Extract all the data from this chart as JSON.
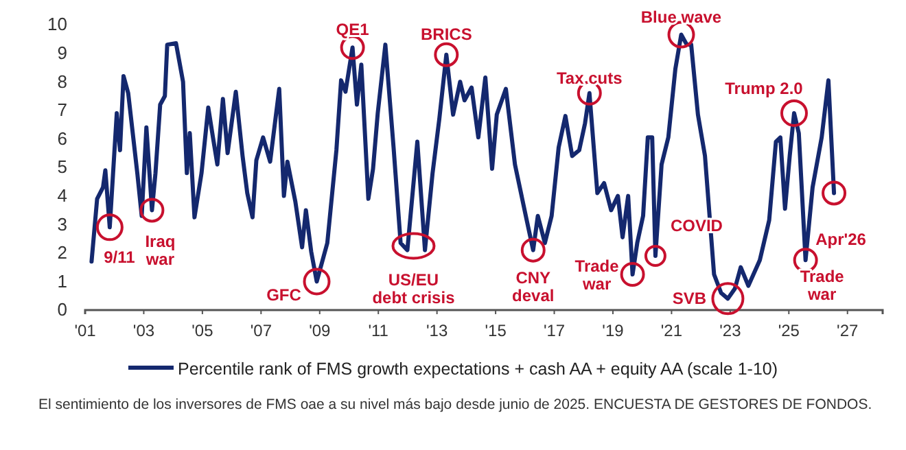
{
  "chart_data": {
    "type": "line",
    "x": [
      2001.22,
      2001.41,
      2001.61,
      2001.69,
      2001.84,
      2002.08,
      2002.19,
      2002.31,
      2002.47,
      2002.78,
      2002.93,
      2003.09,
      2003.28,
      2003.4,
      2003.56,
      2003.72,
      2003.8,
      2004.1,
      2004.34,
      2004.47,
      2004.57,
      2004.73,
      2004.97,
      2005.2,
      2005.36,
      2005.51,
      2005.7,
      2005.86,
      2006.14,
      2006.37,
      2006.53,
      2006.71,
      2006.84,
      2007.07,
      2007.31,
      2007.62,
      2007.78,
      2007.9,
      2008.17,
      2008.4,
      2008.53,
      2008.71,
      2008.9,
      2009.1,
      2009.26,
      2009.57,
      2009.73,
      2009.88,
      2010.12,
      2010.27,
      2010.42,
      2010.66,
      2010.82,
      2010.98,
      2011.24,
      2011.52,
      2011.76,
      2011.99,
      2012.33,
      2012.59,
      2012.85,
      2013.08,
      2013.32,
      2013.55,
      2013.79,
      2013.94,
      2014.18,
      2014.41,
      2014.65,
      2014.88,
      2015.04,
      2015.35,
      2015.66,
      2016.05,
      2016.28,
      2016.44,
      2016.68,
      2016.91,
      2017.15,
      2017.38,
      2017.61,
      2017.85,
      2018.05,
      2018.2,
      2018.47,
      2018.7,
      2018.94,
      2019.17,
      2019.33,
      2019.52,
      2019.67,
      2019.83,
      2020.03,
      2020.19,
      2020.34,
      2020.45,
      2020.66,
      2020.89,
      2021.13,
      2021.33,
      2021.52,
      2021.67,
      2021.9,
      2022.14,
      2022.45,
      2022.69,
      2022.92,
      2023.16,
      2023.36,
      2023.62,
      2024.01,
      2024.33,
      2024.56,
      2024.71,
      2024.87,
      2025.03,
      2025.18,
      2025.34,
      2025.57,
      2025.81,
      2026.12,
      2026.35,
      2026.54
    ],
    "series": [
      {
        "name": "Percentile rank of FMS growth expectations + cash AA + equity AA (scale 1-10)",
        "color": "#14286e",
        "values": [
          1.7,
          3.9,
          4.3,
          4.9,
          2.9,
          6.9,
          5.6,
          8.2,
          7.6,
          4.8,
          3.3,
          6.4,
          3.5,
          4.8,
          7.2,
          7.5,
          9.3,
          9.35,
          8.0,
          4.8,
          6.2,
          3.25,
          4.8,
          7.1,
          6.05,
          5.1,
          7.4,
          5.5,
          7.65,
          5.4,
          4.1,
          3.25,
          5.25,
          6.05,
          5.2,
          7.75,
          4.0,
          5.2,
          3.8,
          2.2,
          3.5,
          2.05,
          1.0,
          1.75,
          2.35,
          5.6,
          8.05,
          7.65,
          9.2,
          7.2,
          8.6,
          3.9,
          4.95,
          6.9,
          9.3,
          5.7,
          2.35,
          2.1,
          5.9,
          2.1,
          4.8,
          6.7,
          8.95,
          6.85,
          8.0,
          7.35,
          7.8,
          6.05,
          8.15,
          4.95,
          6.85,
          7.75,
          5.1,
          3.2,
          2.1,
          3.3,
          2.35,
          3.3,
          5.7,
          6.8,
          5.4,
          5.6,
          6.55,
          7.6,
          4.1,
          4.45,
          3.5,
          4.0,
          2.55,
          4.0,
          1.25,
          2.35,
          3.3,
          6.05,
          6.05,
          1.9,
          5.1,
          6.05,
          8.45,
          9.65,
          9.3,
          9.3,
          6.85,
          5.4,
          1.25,
          0.6,
          0.4,
          0.75,
          1.5,
          0.85,
          1.75,
          3.15,
          5.9,
          6.05,
          3.55,
          5.4,
          6.9,
          6.2,
          1.75,
          4.3,
          6.05,
          8.05,
          4.1
        ]
      }
    ],
    "xlim": [
      2001,
      2028.2
    ],
    "ylim": [
      0,
      10
    ],
    "xticks": [
      {
        "value": 2001,
        "label": "'01"
      },
      {
        "value": 2003,
        "label": "'03"
      },
      {
        "value": 2005,
        "label": "'05"
      },
      {
        "value": 2007,
        "label": "'07"
      },
      {
        "value": 2009,
        "label": "'09"
      },
      {
        "value": 2011,
        "label": "'11"
      },
      {
        "value": 2013,
        "label": "'13"
      },
      {
        "value": 2015,
        "label": "'15"
      },
      {
        "value": 2017,
        "label": "'17"
      },
      {
        "value": 2019,
        "label": "'19"
      },
      {
        "value": 2021,
        "label": "'21"
      },
      {
        "value": 2023,
        "label": "'23"
      },
      {
        "value": 2025,
        "label": "'25"
      },
      {
        "value": 2027,
        "label": "'27"
      }
    ],
    "yticks": [
      0,
      1,
      2,
      3,
      4,
      5,
      6,
      7,
      8,
      9,
      10
    ],
    "grid": false,
    "legend": "bottom",
    "annotations": [
      {
        "text": "9/11",
        "x": 2001.84,
        "y": 2.9
      },
      {
        "text": "Iraq war",
        "x": 2003.28,
        "y": 3.5
      },
      {
        "text": "GFC",
        "x": 2008.9,
        "y": 1.0
      },
      {
        "text": "QE1",
        "x": 2010.12,
        "y": 9.2
      },
      {
        "text": "US/EU debt crisis",
        "x": 2012.2,
        "y": 2.25
      },
      {
        "text": "BRICS",
        "x": 2013.32,
        "y": 8.95
      },
      {
        "text": "CNY deval",
        "x": 2016.28,
        "y": 2.1
      },
      {
        "text": "Tax cuts",
        "x": 2018.2,
        "y": 7.6
      },
      {
        "text": "Trade war",
        "x": 2019.67,
        "y": 1.25
      },
      {
        "text": "COVID",
        "x": 2020.45,
        "y": 1.9
      },
      {
        "text": "Blue wave",
        "x": 2021.33,
        "y": 9.65
      },
      {
        "text": "SVB",
        "x": 2022.92,
        "y": 0.4
      },
      {
        "text": "Trump 2.0",
        "x": 2025.18,
        "y": 6.9
      },
      {
        "text": "Trade war",
        "x": 2025.57,
        "y": 1.75
      },
      {
        "text": "Apr'26",
        "x": 2026.54,
        "y": 4.1
      },
      "El sentimiento de los inversores de FMS oae a su nivel más bajo desde junio de 2025. ENCUESTA DE GESTORES DE FONDOS."
    ]
  }
}
